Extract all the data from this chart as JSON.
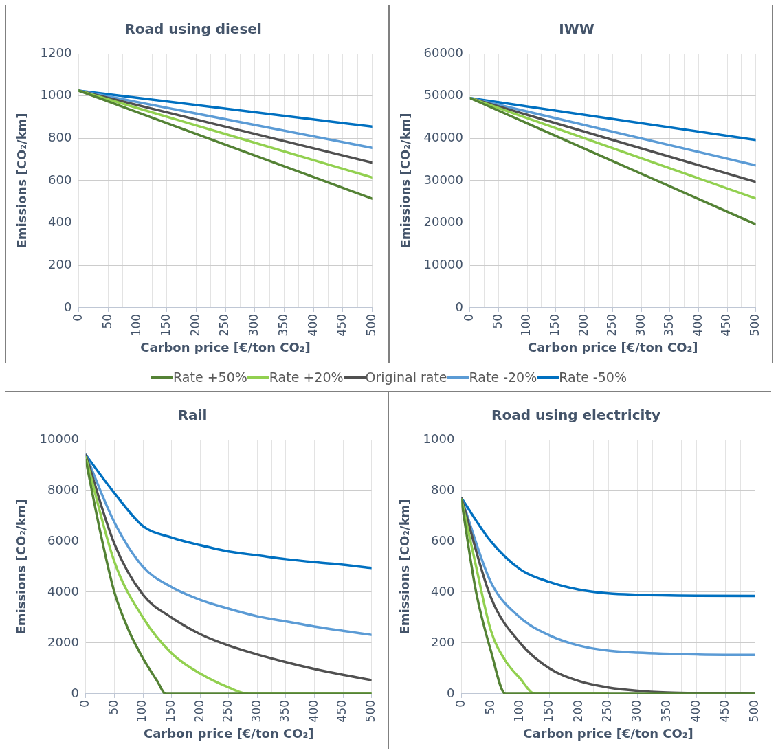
{
  "chart_data": [
    {
      "type": "line",
      "title": "Road using diesel",
      "xlabel": "Carbon price [€/ton CO₂]",
      "ylabel": "Emissions [CO₂/km]",
      "xlim": [
        0,
        500
      ],
      "xticks": [
        0,
        {
          "value": 25,
          "label": null
        },
        50,
        {
          "value": 75,
          "label": null
        },
        100,
        {
          "value": 125,
          "label": null
        },
        150,
        {
          "value": 175,
          "label": null
        },
        200,
        {
          "value": 225,
          "label": null
        },
        250,
        {
          "value": 275,
          "label": null
        },
        300,
        {
          "value": 325,
          "label": null
        },
        350,
        {
          "value": 375,
          "label": null
        },
        400,
        {
          "value": 425,
          "label": null
        },
        450,
        {
          "value": 475,
          "label": null
        },
        500
      ],
      "ylim": [
        0,
        1200
      ],
      "yticks": [
        0,
        200,
        400,
        600,
        800,
        1000,
        1200
      ],
      "grid": true,
      "legend": "bottom",
      "marker": "none",
      "series": [
        {
          "name": "Rate +50%",
          "color": "#548235",
          "x": [
            0,
            500
          ],
          "values": [
            1025,
            515
          ]
        },
        {
          "name": "Rate +20%",
          "color": "#92d050",
          "x": [
            0,
            500
          ],
          "values": [
            1025,
            615
          ]
        },
        {
          "name": "Original rate",
          "color": "#505050",
          "x": [
            0,
            500
          ],
          "values": [
            1025,
            685
          ]
        },
        {
          "name": "Rate -20%",
          "color": "#5b9bd5",
          "x": [
            0,
            500
          ],
          "values": [
            1025,
            755
          ]
        },
        {
          "name": "Rate -50%",
          "color": "#0070c0",
          "x": [
            0,
            500
          ],
          "values": [
            1025,
            855
          ]
        }
      ]
    },
    {
      "type": "line",
      "title": "IWW",
      "xlabel": "Carbon price [€/ton CO₂]",
      "ylabel": "Emissions [CO₂/km]",
      "xlim": [
        0,
        500
      ],
      "xticks": [
        0,
        {
          "value": 25,
          "label": null
        },
        50,
        {
          "value": 75,
          "label": null
        },
        100,
        {
          "value": 125,
          "label": null
        },
        150,
        {
          "value": 175,
          "label": null
        },
        200,
        {
          "value": 225,
          "label": null
        },
        250,
        {
          "value": 275,
          "label": null
        },
        300,
        {
          "value": 325,
          "label": null
        },
        350,
        {
          "value": 375,
          "label": null
        },
        400,
        {
          "value": 425,
          "label": null
        },
        450,
        {
          "value": 475,
          "label": null
        },
        500
      ],
      "ylim": [
        0,
        60000
      ],
      "yticks": [
        0,
        10000,
        20000,
        30000,
        40000,
        50000,
        60000
      ],
      "grid": true,
      "marker": "none",
      "series": [
        {
          "color": "#548235",
          "x": [
            0,
            500
          ],
          "values": [
            49500,
            19700
          ]
        },
        {
          "color": "#92d050",
          "x": [
            0,
            500
          ],
          "values": [
            49500,
            25800
          ]
        },
        {
          "color": "#505050",
          "x": [
            0,
            500
          ],
          "values": [
            49500,
            29700
          ]
        },
        {
          "color": "#5b9bd5",
          "x": [
            0,
            500
          ],
          "values": [
            49500,
            33600
          ]
        },
        {
          "color": "#0070c0",
          "x": [
            0,
            500
          ],
          "values": [
            49500,
            39600
          ]
        }
      ]
    },
    {
      "type": "line",
      "title": "Rail",
      "xlabel": "Carbon price [€/ton CO₂]",
      "ylabel": "Emissions [CO₂/km]",
      "xlim": [
        0,
        500
      ],
      "xticks": [
        0,
        {
          "value": 25,
          "label": null
        },
        50,
        {
          "value": 75,
          "label": null
        },
        100,
        {
          "value": 125,
          "label": null
        },
        150,
        {
          "value": 175,
          "label": null
        },
        200,
        {
          "value": 225,
          "label": null
        },
        250,
        {
          "value": 275,
          "label": null
        },
        300,
        {
          "value": 325,
          "label": null
        },
        350,
        {
          "value": 375,
          "label": null
        },
        400,
        {
          "value": 425,
          "label": null
        },
        450,
        {
          "value": 475,
          "label": null
        },
        500
      ],
      "ylim": [
        0,
        10000
      ],
      "yticks": [
        0,
        2000,
        4000,
        6000,
        8000,
        10000
      ],
      "grid": true,
      "marker": "none",
      "series": [
        {
          "color": "#548235",
          "x": [
            0,
            25,
            50,
            75,
            100,
            125,
            140,
            200,
            300,
            400,
            500
          ],
          "values": [
            9200,
            6400,
            4000,
            2500,
            1400,
            500,
            0,
            0,
            0,
            0,
            0
          ]
        },
        {
          "color": "#92d050",
          "x": [
            0,
            50,
            100,
            150,
            200,
            250,
            285,
            350,
            400,
            450,
            500
          ],
          "values": [
            9300,
            5200,
            3000,
            1600,
            800,
            250,
            0,
            0,
            0,
            0,
            0
          ]
        },
        {
          "color": "#505050",
          "x": [
            0,
            50,
            100,
            150,
            200,
            250,
            300,
            350,
            400,
            450,
            500
          ],
          "values": [
            9400,
            5900,
            3900,
            3000,
            2350,
            1900,
            1550,
            1250,
            980,
            750,
            540
          ]
        },
        {
          "color": "#5b9bd5",
          "x": [
            0,
            50,
            100,
            150,
            200,
            250,
            300,
            350,
            400,
            450,
            500
          ],
          "values": [
            9400,
            6750,
            5000,
            4200,
            3700,
            3350,
            3050,
            2850,
            2650,
            2480,
            2320
          ]
        },
        {
          "color": "#0070c0",
          "x": [
            0,
            50,
            100,
            150,
            200,
            250,
            300,
            350,
            400,
            450,
            500
          ],
          "values": [
            9400,
            7900,
            6600,
            6150,
            5850,
            5600,
            5450,
            5300,
            5180,
            5080,
            4950
          ]
        }
      ]
    },
    {
      "type": "line",
      "title": "Road using electricity",
      "xlabel": "Carbon price [€/ton CO₂]",
      "ylabel": "Emissions [CO₂/km]",
      "xlim": [
        0,
        500
      ],
      "xticks": [
        0,
        {
          "value": 25,
          "label": null
        },
        50,
        {
          "value": 75,
          "label": null
        },
        100,
        {
          "value": 125,
          "label": null
        },
        150,
        {
          "value": 175,
          "label": null
        },
        200,
        {
          "value": 225,
          "label": null
        },
        250,
        {
          "value": 275,
          "label": null
        },
        300,
        {
          "value": 325,
          "label": null
        },
        350,
        {
          "value": 375,
          "label": null
        },
        400,
        {
          "value": 425,
          "label": null
        },
        450,
        {
          "value": 475,
          "label": null
        },
        500
      ],
      "ylim": [
        0,
        1000
      ],
      "yticks": [
        0,
        200,
        400,
        600,
        800,
        1000
      ],
      "grid": true,
      "marker": "none",
      "series": [
        {
          "color": "#548235",
          "x": [
            0,
            25,
            50,
            75,
            150,
            300,
            500
          ],
          "values": [
            760,
            400,
            170,
            0,
            0,
            0,
            0
          ]
        },
        {
          "color": "#92d050",
          "x": [
            0,
            25,
            50,
            75,
            100,
            125,
            200,
            250
          ],
          "values": [
            765,
            500,
            250,
            130,
            60,
            0,
            0,
            0
          ]
        },
        {
          "color": "#505050",
          "x": [
            0,
            50,
            100,
            150,
            200,
            250,
            300,
            350,
            400,
            500
          ],
          "values": [
            770,
            380,
            200,
            100,
            50,
            25,
            12,
            5,
            2,
            0
          ]
        },
        {
          "color": "#5b9bd5",
          "x": [
            0,
            50,
            100,
            150,
            200,
            250,
            300,
            400,
            500
          ],
          "values": [
            770,
            440,
            300,
            230,
            190,
            170,
            162,
            155,
            153
          ]
        },
        {
          "color": "#0070c0",
          "x": [
            0,
            50,
            100,
            150,
            200,
            250,
            300,
            400,
            500
          ],
          "values": [
            770,
            600,
            490,
            440,
            410,
            395,
            390,
            386,
            385
          ]
        }
      ]
    }
  ]
}
